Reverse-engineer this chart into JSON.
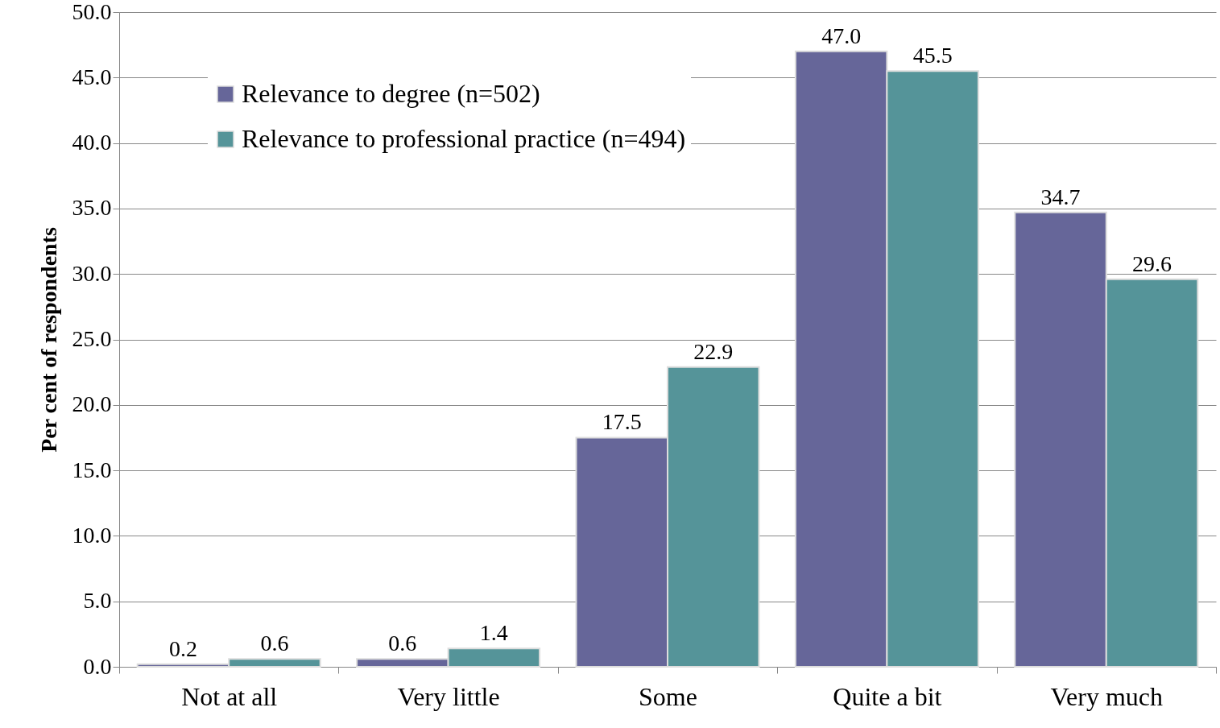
{
  "chart_data": {
    "type": "bar",
    "ylabel": "Per cent of respondents",
    "categories": [
      "Not at all",
      "Very little",
      "Some",
      "Quite a bit",
      "Very much"
    ],
    "series": [
      {
        "name": "Relevance to degree (n=502)",
        "color": "#666699",
        "values": [
          0.2,
          0.6,
          17.5,
          47.0,
          34.7
        ],
        "value_labels": [
          "0.2",
          "0.6",
          "17.5",
          "47.0",
          "34.7"
        ]
      },
      {
        "name": "Relevance to professional practice (n=494)",
        "color": "#559499",
        "values": [
          0.6,
          1.4,
          22.9,
          45.5,
          29.6
        ],
        "value_labels": [
          "0.6",
          "1.4",
          "22.9",
          "45.5",
          "29.6"
        ]
      }
    ],
    "ylim": [
      0,
      50
    ],
    "yticks": [
      {
        "value": 0,
        "label": "0.0"
      },
      {
        "value": 5,
        "label": "5.0"
      },
      {
        "value": 10,
        "label": "10.0"
      },
      {
        "value": 15,
        "label": "15.0"
      },
      {
        "value": 20,
        "label": "20.0"
      },
      {
        "value": 25,
        "label": "25.0"
      },
      {
        "value": 30,
        "label": "30.0"
      },
      {
        "value": 35,
        "label": "35.0"
      },
      {
        "value": 40,
        "label": "40.0"
      },
      {
        "value": 45,
        "label": "45.0"
      },
      {
        "value": 50,
        "label": "50.0"
      }
    ],
    "grid": "y",
    "legend": "top left"
  }
}
